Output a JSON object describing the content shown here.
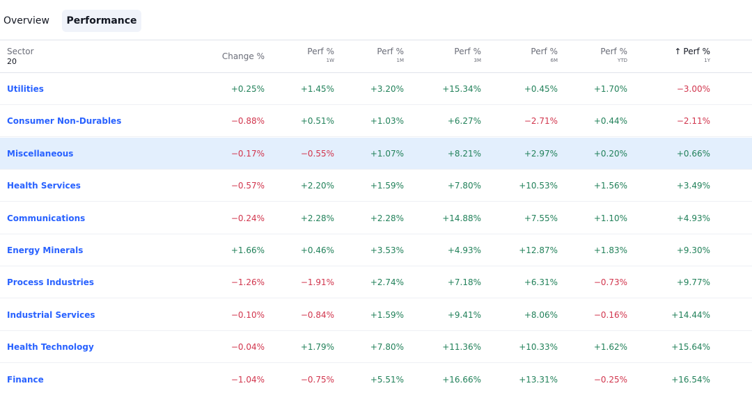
{
  "tabs": [
    {
      "label": "Overview",
      "active": false
    },
    {
      "label": "Performance",
      "active": true
    }
  ],
  "header": {
    "sector": {
      "label": "Sector",
      "count": "20"
    },
    "columns": [
      {
        "label": "Change %",
        "sub": ""
      },
      {
        "label": "Perf %",
        "sub": "1W"
      },
      {
        "label": "Perf %",
        "sub": "1M"
      },
      {
        "label": "Perf %",
        "sub": "3M"
      },
      {
        "label": "Perf %",
        "sub": "6M"
      },
      {
        "label": "Perf %",
        "sub": "YTD"
      },
      {
        "label": "Perf %",
        "sub": "1Y",
        "sorted": true,
        "sort_arrow": "↑"
      }
    ]
  },
  "colors": {
    "positive": "#22815a",
    "negative": "#d1354d",
    "link": "#2962ff",
    "highlight_row": "#e3effd"
  },
  "rows": [
    {
      "sector": "Utilities",
      "values": [
        "+0.25%",
        "+1.45%",
        "+3.20%",
        "+15.34%",
        "+0.45%",
        "+1.70%",
        "−3.00%"
      ]
    },
    {
      "sector": "Consumer Non-Durables",
      "values": [
        "−0.88%",
        "+0.51%",
        "+1.03%",
        "+6.27%",
        "−2.71%",
        "+0.44%",
        "−2.11%"
      ]
    },
    {
      "sector": "Miscellaneous",
      "highlighted": true,
      "values": [
        "−0.17%",
        "−0.55%",
        "+1.07%",
        "+8.21%",
        "+2.97%",
        "+0.20%",
        "+0.66%"
      ]
    },
    {
      "sector": "Health Services",
      "values": [
        "−0.57%",
        "+2.20%",
        "+1.59%",
        "+7.80%",
        "+10.53%",
        "+1.56%",
        "+3.49%"
      ]
    },
    {
      "sector": "Communications",
      "values": [
        "−0.24%",
        "+2.28%",
        "+2.28%",
        "+14.88%",
        "+7.55%",
        "+1.10%",
        "+4.93%"
      ]
    },
    {
      "sector": "Energy Minerals",
      "values": [
        "+1.66%",
        "+0.46%",
        "+3.53%",
        "+4.93%",
        "+12.87%",
        "+1.83%",
        "+9.30%"
      ]
    },
    {
      "sector": "Process Industries",
      "values": [
        "−1.26%",
        "−1.91%",
        "+2.74%",
        "+7.18%",
        "+6.31%",
        "−0.73%",
        "+9.77%"
      ]
    },
    {
      "sector": "Industrial Services",
      "values": [
        "−0.10%",
        "−0.84%",
        "+1.59%",
        "+9.41%",
        "+8.06%",
        "−0.16%",
        "+14.44%"
      ]
    },
    {
      "sector": "Health Technology",
      "values": [
        "−0.04%",
        "+1.79%",
        "+7.80%",
        "+11.36%",
        "+10.33%",
        "+1.62%",
        "+15.64%"
      ]
    },
    {
      "sector": "Finance",
      "values": [
        "−1.04%",
        "−0.75%",
        "+5.51%",
        "+16.66%",
        "+13.31%",
        "−0.25%",
        "+16.54%"
      ]
    }
  ]
}
